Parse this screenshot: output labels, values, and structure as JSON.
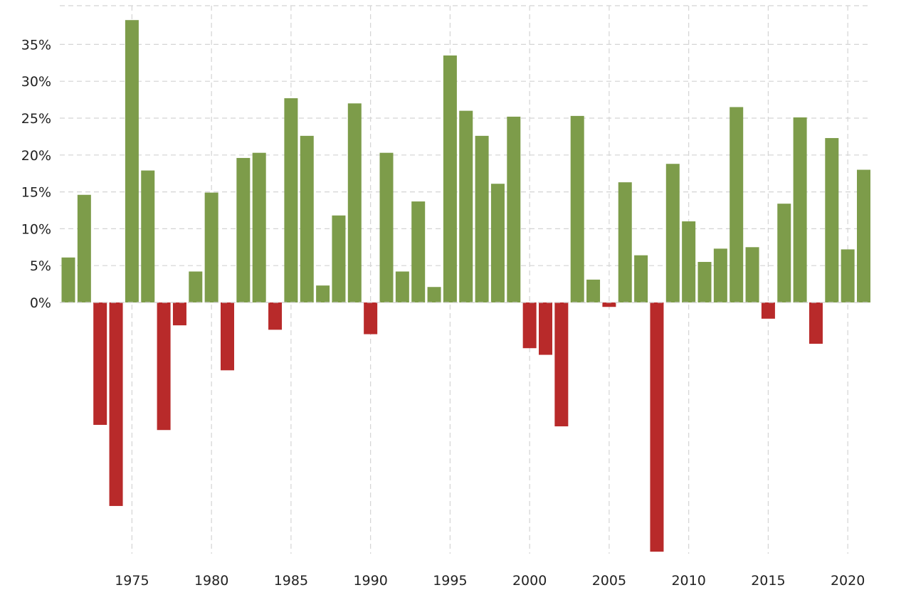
{
  "chart_data": {
    "type": "bar",
    "title": "",
    "xlabel": "",
    "ylabel": "",
    "x": [
      1971,
      1972,
      1973,
      1974,
      1975,
      1976,
      1977,
      1978,
      1979,
      1980,
      1981,
      1982,
      1983,
      1984,
      1985,
      1986,
      1987,
      1988,
      1989,
      1990,
      1991,
      1992,
      1993,
      1994,
      1995,
      1996,
      1997,
      1998,
      1999,
      2000,
      2001,
      2002,
      2003,
      2004,
      2005,
      2006,
      2007,
      2008,
      2009,
      2010,
      2011,
      2012,
      2013,
      2014,
      2015,
      2016,
      2017,
      2018,
      2019,
      2020,
      2021
    ],
    "values": [
      6.1,
      14.6,
      -16.6,
      -27.6,
      38.3,
      17.9,
      -17.3,
      -3.1,
      4.2,
      14.9,
      -9.2,
      19.6,
      20.3,
      -3.7,
      27.7,
      22.6,
      2.3,
      11.8,
      27.0,
      -4.3,
      20.3,
      4.2,
      13.7,
      2.1,
      33.5,
      26.0,
      22.6,
      16.1,
      25.2,
      -6.2,
      -7.1,
      -16.8,
      25.3,
      3.1,
      -0.6,
      16.3,
      6.4,
      -33.8,
      18.8,
      11.0,
      5.5,
      7.3,
      26.5,
      7.5,
      -2.2,
      13.4,
      25.1,
      -5.6,
      22.3,
      7.2,
      18.0
    ],
    "colors": {
      "positive": "#7d9c4a",
      "negative": "#b82a2a"
    },
    "ylim": [
      -34.5,
      40
    ],
    "yticks": [
      0,
      5,
      10,
      15,
      20,
      25,
      30,
      35
    ],
    "ytick_labels": [
      "0%",
      "5%",
      "10%",
      "15%",
      "20%",
      "25%",
      "30%",
      "35%"
    ],
    "xticks": [
      1975,
      1980,
      1985,
      1990,
      1995,
      2000,
      2005,
      2010,
      2015,
      2020
    ],
    "xtick_labels": [
      "1975",
      "1980",
      "1985",
      "1990",
      "1995",
      "2000",
      "2005",
      "2010",
      "2015",
      "2020"
    ],
    "grid": true,
    "legend": "none"
  }
}
